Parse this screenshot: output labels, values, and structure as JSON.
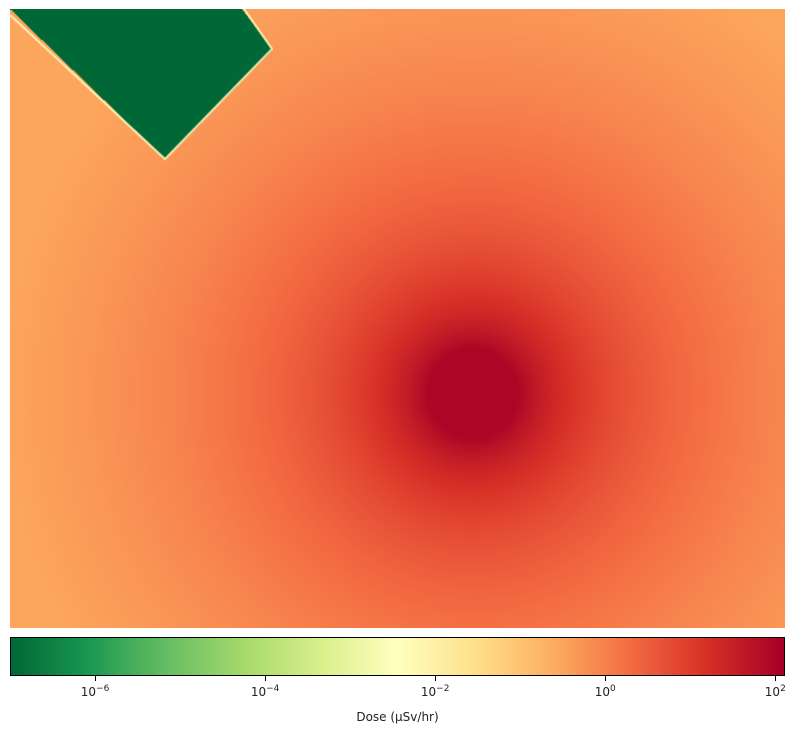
{
  "chart_data": {
    "type": "heatmap",
    "description_free": true,
    "hotspot": {
      "x_frac": 0.597,
      "y_frac": 0.621,
      "peak_dose": 100
    },
    "shielded_region_dose": 1e-07,
    "background_edge_dose": 0.3,
    "colormap": "RdYlGn_r",
    "colorbar": {
      "label": "Dose (μSv/hr)",
      "scale": "log",
      "range": [
        1e-07,
        130
      ],
      "ticks": [
        {
          "value": 1e-06,
          "label_base": "10",
          "label_exp": "−6"
        },
        {
          "value": 0.0001,
          "label_base": "10",
          "label_exp": "−4"
        },
        {
          "value": 0.01,
          "label_base": "10",
          "label_exp": "−2"
        },
        {
          "value": 1,
          "label_base": "10",
          "label_exp": "0"
        },
        {
          "value": 100,
          "label_base": "10",
          "label_exp": "2"
        }
      ]
    }
  }
}
